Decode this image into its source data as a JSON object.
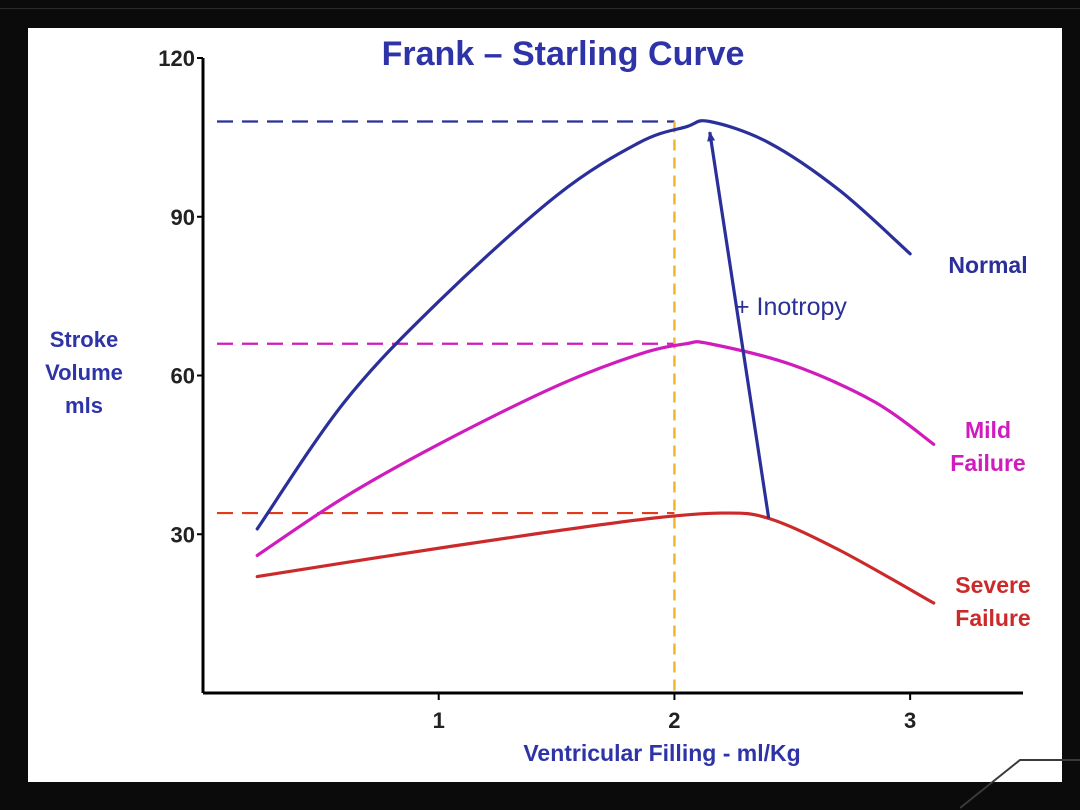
{
  "chart_data": {
    "type": "line",
    "title": "Frank – Starling Curve",
    "xlabel": "Ventricular Filling - ml/Kg",
    "ylabel_lines": [
      "Stroke",
      "Volume",
      "mls"
    ],
    "xlim": [
      0,
      3.5
    ],
    "ylim": [
      0,
      120
    ],
    "xticks": [
      {
        "value": 1,
        "label": "1"
      },
      {
        "value": 2,
        "label": "2"
      },
      {
        "value": 3,
        "label": "3"
      }
    ],
    "yticks": [
      {
        "value": 30,
        "label": "30"
      },
      {
        "value": 60,
        "label": "60"
      },
      {
        "value": 90,
        "label": "90"
      },
      {
        "value": 120,
        "label": "120"
      }
    ],
    "series": [
      {
        "name": "Normal",
        "label_lines": [
          "Normal"
        ],
        "color": "#2b2f9a",
        "points": [
          [
            0.23,
            31
          ],
          [
            0.6,
            55
          ],
          [
            1.0,
            74
          ],
          [
            1.5,
            94
          ],
          [
            1.85,
            104
          ],
          [
            2.05,
            107
          ],
          [
            2.15,
            108
          ],
          [
            2.4,
            104
          ],
          [
            2.7,
            95
          ],
          [
            3.0,
            83
          ]
        ]
      },
      {
        "name": "Mild Failure",
        "label_lines": [
          "Mild",
          "Failure"
        ],
        "color": "#d01bbd",
        "points": [
          [
            0.23,
            26
          ],
          [
            0.6,
            37
          ],
          [
            1.0,
            47
          ],
          [
            1.5,
            58
          ],
          [
            1.85,
            64
          ],
          [
            2.05,
            66
          ],
          [
            2.15,
            66
          ],
          [
            2.5,
            62
          ],
          [
            2.85,
            55
          ],
          [
            3.1,
            47
          ]
        ]
      },
      {
        "name": "Severe Failure",
        "label_lines": [
          "Severe",
          "Failure"
        ],
        "color": "#cc2a2a",
        "points": [
          [
            0.23,
            22
          ],
          [
            0.8,
            26
          ],
          [
            1.4,
            30
          ],
          [
            1.9,
            33
          ],
          [
            2.2,
            34
          ],
          [
            2.4,
            33
          ],
          [
            2.7,
            27
          ],
          [
            3.1,
            17
          ]
        ]
      }
    ],
    "reference_lines": [
      {
        "kind": "horizontal",
        "y": 108,
        "color": "#2b2f9a"
      },
      {
        "kind": "horizontal",
        "y": 66,
        "color": "#d01bbd"
      },
      {
        "kind": "horizontal",
        "y": 34,
        "color": "#e23a1a"
      },
      {
        "kind": "vertical",
        "x": 2,
        "color": "#f0b429"
      }
    ],
    "annotations": [
      {
        "text": "+ Inotropy",
        "color": "#2b2f9a",
        "arrow_from": [
          2.4,
          33
        ],
        "arrow_to": [
          2.15,
          106
        ]
      }
    ],
    "colors": {
      "title": "#2e34a8",
      "axis_label": "#2e34a8",
      "axis": "#000000"
    }
  }
}
